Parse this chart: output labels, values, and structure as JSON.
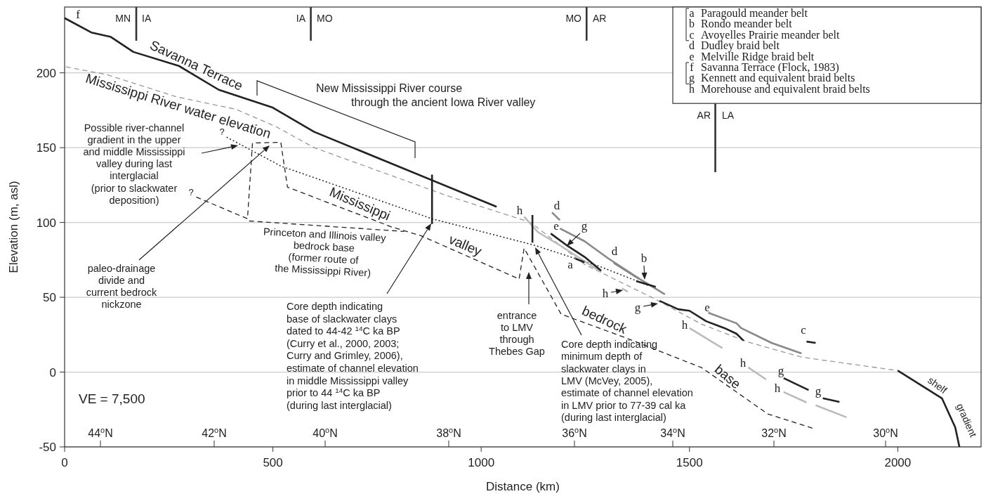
{
  "chart_data": {
    "type": "line",
    "xlabel": "Distance (km)",
    "ylabel": "Elevation (m, asl)",
    "xlim": [
      0,
      2200
    ],
    "xticks": [
      0,
      500,
      1000,
      1500,
      2000
    ],
    "ylim": [
      -50,
      244
    ],
    "yticks": [
      -50,
      0,
      50,
      100,
      150,
      200
    ],
    "grid": "y",
    "series": [
      {
        "name": "Savanna Terrace",
        "color": "#222222",
        "line_style": "solid",
        "x": [
          0,
          64,
          111,
          165,
          274,
          370,
          498,
          599,
          1037
        ],
        "values": [
          236.6,
          227,
          224,
          214,
          204.7,
          188.7,
          177,
          160.6,
          110.5
        ]
      },
      {
        "name": "Mississippi River water elevation",
        "color": "#999999",
        "line_style": "dashed",
        "x": [
          3,
          99,
          167,
          268,
          412,
          508,
          599,
          917,
          1119,
          1248,
          1416,
          1529,
          1641,
          1769,
          2000
        ],
        "values": [
          204,
          199,
          193,
          184,
          175.6,
          164,
          150,
          118,
          100,
          72,
          49,
          32,
          20,
          10,
          1
        ]
      },
      {
        "name": "shelf gradient",
        "color": "#222222",
        "line_style": "solid",
        "x": [
          2000,
          2106,
          2138,
          2148
        ],
        "values": [
          1,
          -17.5,
          -37,
          -50
        ]
      },
      {
        "color": "#222222",
        "line_style": "dotted",
        "x": [
          389,
          520,
          882,
          1125,
          1281,
          1400
        ],
        "values": [
          157,
          137.6,
          102.5,
          85,
          71,
          58
        ]
      },
      {
        "color": "#222222",
        "line_style": "dashed",
        "x": [
          443,
          815
        ],
        "values": [
          101,
          94
        ]
      },
      {
        "name": "Mississippi valley bedrock base",
        "color": "#222222",
        "line_style": "dashed",
        "x": [
          316,
          439,
          451,
          519,
          535,
          786,
          855,
          1091,
          1103,
          1192,
          1343,
          1529,
          1601,
          1688,
          1798
        ],
        "values": [
          117,
          102.5,
          153.1,
          153.6,
          123.6,
          96.9,
          91.2,
          62.2,
          82.8,
          38.7,
          23.3,
          3,
          -11,
          -28,
          -37.7
        ]
      },
      {
        "color": "#bbbbbb",
        "line_style": "solid",
        "x": [
          1103,
          1136,
          1192,
          1288
        ],
        "values": [
          103.9,
          93.6,
          84.2,
          66.9
        ]
      },
      {
        "color": "#888888",
        "line_style": "solid",
        "x": [
          1170,
          1189
        ],
        "values": [
          106.7,
          101.5
        ]
      },
      {
        "color": "#888888",
        "line_style": "solid",
        "x": [
          1189,
          1248,
          1305,
          1382,
          1441
        ],
        "values": [
          96,
          87.5,
          76,
          62,
          52
        ]
      },
      {
        "color": "#888888",
        "line_style": "solid",
        "x": [
          1318,
          1380
        ],
        "values": [
          73,
          62
        ]
      },
      {
        "color": "#222222",
        "line_style": "solid",
        "x": [
          1167,
          1204,
          1248,
          1288
        ],
        "values": [
          92.6,
          85,
          77,
          67.8
        ]
      },
      {
        "color": "#222222",
        "line_style": "solid",
        "x": [
          1226,
          1248
        ],
        "values": [
          75.8,
          73.4
        ]
      },
      {
        "color": "#222222",
        "line_style": "solid",
        "x": [
          1372,
          1419
        ],
        "values": [
          60.8,
          57
        ]
      },
      {
        "color": "#bbbbbb",
        "line_style": "solid",
        "x": [
          1338,
          1352
        ],
        "values": [
          56,
          53.7
        ]
      },
      {
        "color": "#222222",
        "line_style": "solid",
        "x": [
          1428,
          1473,
          1500,
          1540,
          1584,
          1613,
          1630
        ],
        "values": [
          47.6,
          42,
          41,
          34,
          29.4,
          25.6,
          21
        ]
      },
      {
        "color": "#888888",
        "line_style": "solid",
        "x": [
          1545,
          1613,
          1624,
          1697,
          1769
        ],
        "values": [
          39.7,
          32.6,
          29.4,
          19.5,
          12.5
        ]
      },
      {
        "color": "#bbbbbb",
        "line_style": "solid",
        "x": [
          1500,
          1579
        ],
        "values": [
          29.4,
          16
        ]
      },
      {
        "color": "#222222",
        "line_style": "solid",
        "x": [
          1781,
          1803
        ],
        "values": [
          20.4,
          19.5
        ]
      },
      {
        "color": "#bbbbbb",
        "line_style": "solid",
        "x": [
          1641,
          1684
        ],
        "values": [
          3.1,
          -4.9
        ]
      },
      {
        "color": "#222222",
        "line_style": "solid",
        "x": [
          1726,
          1786
        ],
        "values": [
          -4,
          -12
        ]
      },
      {
        "color": "#222222",
        "line_style": "solid",
        "x": [
          1820,
          1860
        ],
        "values": [
          -17.5,
          -19.9
        ]
      },
      {
        "color": "#bbbbbb",
        "line_style": "solid",
        "x": [
          1726,
          1781,
          1790,
          1803,
          1877
        ],
        "values": [
          -13.3,
          -20.3,
          null,
          -22.2,
          -30.2
        ]
      },
      {
        "color": "#222222",
        "line_style": "solid",
        "x": [
          882,
          882
        ],
        "values": [
          132,
          99
        ]
      },
      {
        "color": "#222222",
        "line_style": "solid",
        "x": [
          1123,
          1123
        ],
        "values": [
          105,
          86.5
        ]
      },
      {
        "color": "#333333",
        "line_style": "solid",
        "x": [
          172,
          172
        ],
        "values": [
          244,
          221.5
        ]
      },
      {
        "color": "#333333",
        "line_style": "solid",
        "x": [
          591,
          591
        ],
        "values": [
          244,
          221.5
        ]
      },
      {
        "color": "#333333",
        "line_style": "solid",
        "x": [
          1253,
          1253
        ],
        "values": [
          244,
          221.5
        ]
      },
      {
        "color": "#333333",
        "line_style": "solid",
        "x": [
          1562,
          1562
        ],
        "values": [
          180,
          133.6
        ]
      }
    ],
    "annotations": [
      "VE = 7,500",
      "New Mississippi River course\nthrough the ancient Iowa River valley",
      "Possible river-channel\ngradient in the upper\nand middle Mississippi\nvalley during last\ninterglacial\n(prior to slackwater\ndeposition)",
      "paleo-drainage\ndivide and\ncurrent bedrock\nnickzone",
      "Princeton and Illinois valley\nbedrock base\n(former route of\nthe Mississippi River)",
      "Core depth indicating\nbase of slackwater clays\ndated to 44-42 $^{14}$C ka BP\n(Curry et al., 2000, 2003;\nCurry and Grimley, 2006),\nestimate of channel elevation\nin middle Mississippi valley\nprior to 44 $^{14}$C ka BP\n(during last interglacial)",
      "entrance\nto LMV\nthrough\nThebes Gap",
      "Core depth indicating\nminimum depth of\nslackwater clays in\nLMV (McVey, 2005),\nestimate of channel elevation\nin LMV prior to 77-39 cal ka\n(during last interglacial)",
      "?",
      "?",
      "MN",
      "IA",
      "IA",
      "MO",
      "MO",
      "AR",
      "AR",
      "LA",
      "f",
      "h",
      "d",
      "e",
      "g",
      "d",
      "b",
      "a",
      "h",
      "g",
      "e",
      "h",
      "c",
      "h",
      "g",
      "h",
      "g",
      "a Paragould meander belt",
      "b Rondo meander belt",
      "c Avoyelles Prairie meander belt",
      "d Dudley braid belt",
      "e Melville Ridge braid belt",
      "f Savanna Terrace (Flock, 1983)",
      "g Kennett and equivalent braid belts",
      "h Morehouse and equivalent braid belts",
      "44$^{o}$N",
      "42$^{o}$N",
      "40$^{o}$N",
      "38$^{o}$N",
      "36$^{o}$N",
      "34$^{o}$N",
      "32$^{o}$N",
      "30$^{o}$N"
    ]
  }
}
